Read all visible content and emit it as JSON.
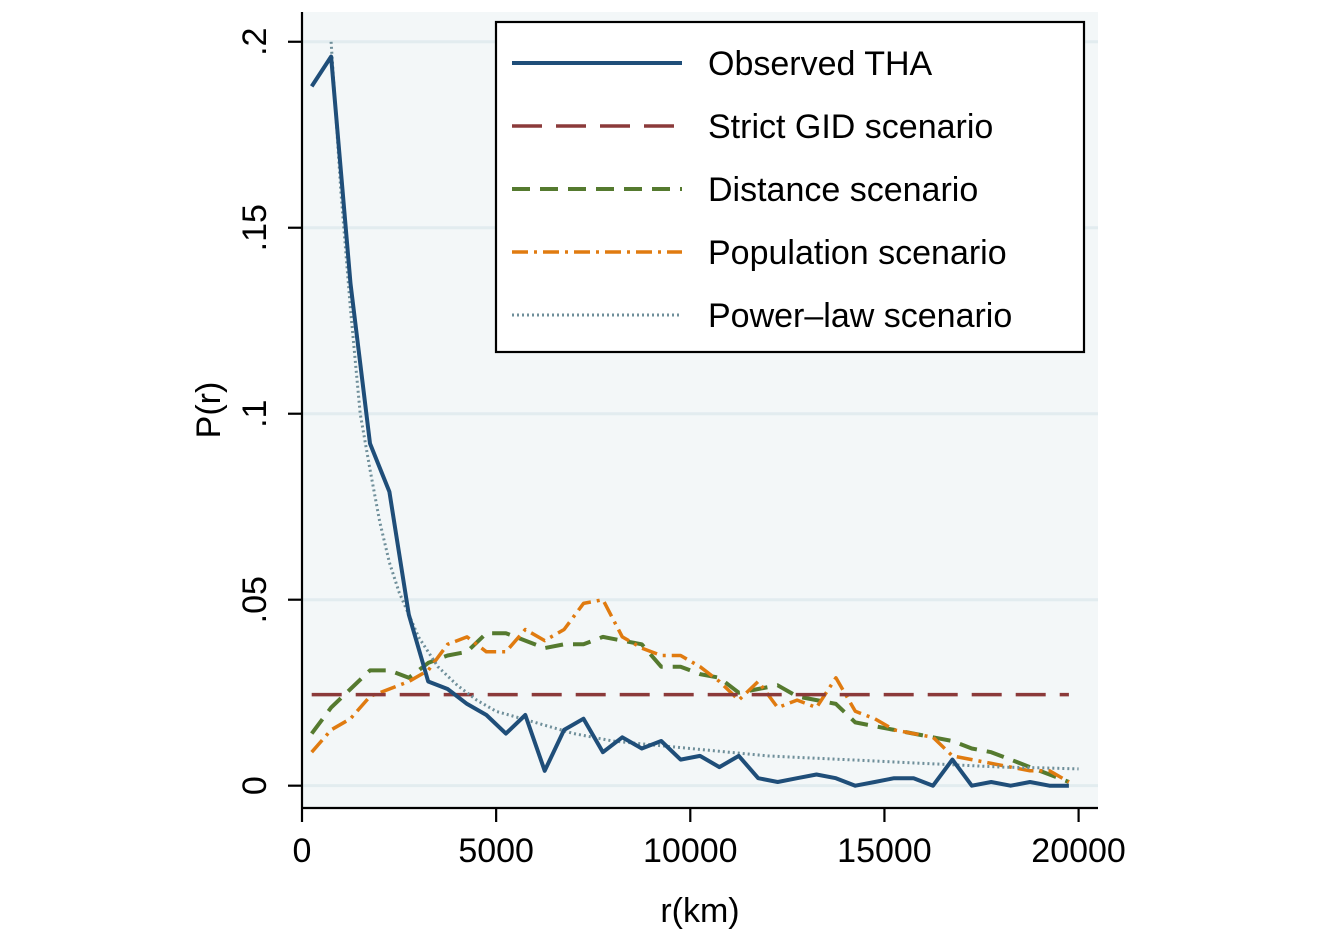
{
  "chart_data": {
    "type": "line",
    "xlabel": "r(km)",
    "ylabel": "P(r)",
    "xlim": [
      0,
      20500
    ],
    "ylim": [
      -0.006,
      0.208
    ],
    "xticks": [
      0,
      5000,
      10000,
      15000,
      20000
    ],
    "xtick_labels": [
      "0",
      "5000",
      "10000",
      "15000",
      "20000"
    ],
    "yticks": [
      0,
      0.05,
      0.1,
      0.15,
      0.2
    ],
    "ytick_labels": [
      "0",
      ".05",
      ".1",
      ".15",
      ".2"
    ],
    "grid": true,
    "legend_position": "top-right",
    "series": [
      {
        "name": "Observed THA",
        "color": "#1f4e79",
        "style": "solid",
        "x": [
          250,
          750,
          1250,
          1750,
          2250,
          2750,
          3250,
          3750,
          4250,
          4750,
          5250,
          5750,
          6250,
          6750,
          7250,
          7750,
          8250,
          8750,
          9250,
          9750,
          10250,
          10750,
          11250,
          11750,
          12250,
          12750,
          13250,
          13750,
          14250,
          14750,
          15250,
          15750,
          16250,
          16750,
          17250,
          17750,
          18250,
          18750,
          19250,
          19750
        ],
        "y": [
          0.188,
          0.196,
          0.135,
          0.092,
          0.079,
          0.046,
          0.028,
          0.026,
          0.022,
          0.019,
          0.014,
          0.019,
          0.004,
          0.015,
          0.018,
          0.009,
          0.013,
          0.01,
          0.012,
          0.007,
          0.008,
          0.005,
          0.008,
          0.002,
          0.001,
          0.002,
          0.003,
          0.002,
          0.0,
          0.001,
          0.002,
          0.002,
          0.0,
          0.007,
          0.0,
          0.001,
          0.0,
          0.001,
          0.0,
          0.0
        ]
      },
      {
        "name": "Strict GID scenario",
        "color": "#8b3a3a",
        "style": "longdash",
        "x": [
          250,
          19750
        ],
        "y": [
          0.0245,
          0.0245
        ]
      },
      {
        "name": "Distance scenario",
        "color": "#557a2f",
        "style": "dash",
        "x": [
          250,
          750,
          1250,
          1750,
          2250,
          2750,
          3250,
          3750,
          4250,
          4750,
          5250,
          5750,
          6250,
          6750,
          7250,
          7750,
          8250,
          8750,
          9250,
          9750,
          10250,
          10750,
          11250,
          11750,
          12250,
          12750,
          13250,
          13750,
          14250,
          14750,
          15250,
          15750,
          16250,
          16750,
          17250,
          17750,
          18250,
          18750,
          19250,
          19750
        ],
        "y": [
          0.014,
          0.021,
          0.026,
          0.031,
          0.031,
          0.029,
          0.033,
          0.035,
          0.036,
          0.041,
          0.041,
          0.039,
          0.037,
          0.038,
          0.038,
          0.04,
          0.039,
          0.038,
          0.032,
          0.032,
          0.03,
          0.029,
          0.025,
          0.026,
          0.027,
          0.024,
          0.023,
          0.022,
          0.017,
          0.016,
          0.015,
          0.014,
          0.013,
          0.012,
          0.01,
          0.009,
          0.007,
          0.005,
          0.003,
          0.001
        ]
      },
      {
        "name": "Population scenario",
        "color": "#e07b10",
        "style": "dashdot",
        "x": [
          250,
          750,
          1250,
          1750,
          2250,
          2750,
          3250,
          3750,
          4250,
          4750,
          5250,
          5750,
          6250,
          6750,
          7250,
          7750,
          8250,
          8750,
          9250,
          9750,
          10250,
          10750,
          11250,
          11750,
          12250,
          12750,
          13250,
          13750,
          14250,
          14750,
          15250,
          15750,
          16250,
          16750,
          17250,
          17750,
          18250,
          18750,
          19250,
          19750
        ],
        "y": [
          0.009,
          0.015,
          0.018,
          0.024,
          0.026,
          0.028,
          0.031,
          0.038,
          0.04,
          0.036,
          0.036,
          0.042,
          0.039,
          0.042,
          0.049,
          0.05,
          0.04,
          0.037,
          0.035,
          0.035,
          0.032,
          0.028,
          0.023,
          0.028,
          0.021,
          0.023,
          0.021,
          0.029,
          0.02,
          0.018,
          0.015,
          0.014,
          0.013,
          0.008,
          0.007,
          0.006,
          0.005,
          0.004,
          0.004,
          0.001
        ]
      },
      {
        "name": "Power–law scenario",
        "color": "#6f8f9a",
        "style": "dot",
        "x": [
          750,
          1000,
          1250,
          1500,
          1750,
          2000,
          2250,
          2500,
          3000,
          3500,
          4000,
          4500,
          5000,
          6000,
          7000,
          8000,
          9000,
          10000,
          11000,
          12000,
          13000,
          14000,
          15000,
          16000,
          17000,
          18000,
          19000,
          20000
        ],
        "y": [
          0.2,
          0.16,
          0.128,
          0.1,
          0.085,
          0.071,
          0.06,
          0.052,
          0.04,
          0.032,
          0.027,
          0.023,
          0.02,
          0.017,
          0.014,
          0.012,
          0.011,
          0.01,
          0.009,
          0.008,
          0.0075,
          0.007,
          0.0065,
          0.006,
          0.0055,
          0.005,
          0.0048,
          0.0045
        ]
      }
    ]
  }
}
